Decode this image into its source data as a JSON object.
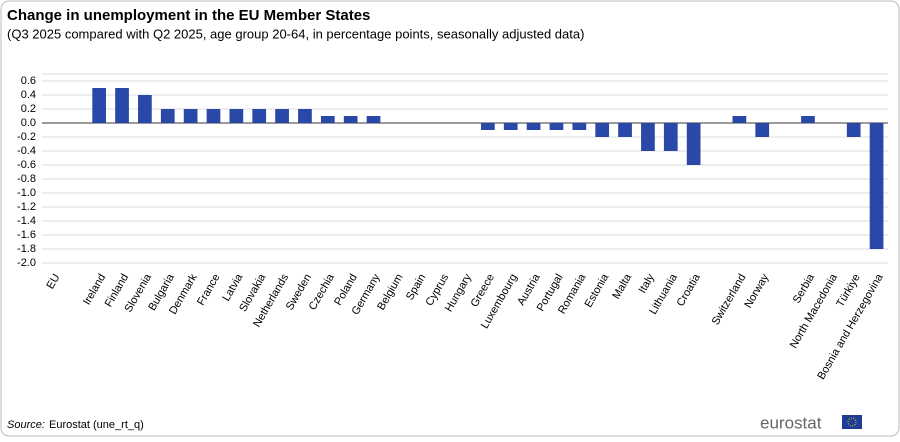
{
  "chart_data": {
    "type": "bar",
    "title": "Change in unemployment in the EU Member States",
    "subtitle": "(Q3 2025 compared with Q2 2025, age group 20-64, in percentage points, seasonally adjusted data)",
    "categories": [
      "EU",
      null,
      "Ireland",
      "Finland",
      "Slovenia",
      "Bulgaria",
      "Denmark",
      "France",
      "Latvia",
      "Slovakia",
      "Netherlands",
      "Sweden",
      "Czechia",
      "Poland",
      "Germany",
      "Belgium",
      "Spain",
      "Cyprus",
      "Hungary",
      "Greece",
      "Luxembourg",
      "Austria",
      "Portugal",
      "Romania",
      "Estonia",
      "Malta",
      "Italy",
      "Lithuania",
      "Croatia",
      null,
      "Switzerland",
      "Norway",
      null,
      "Serbia",
      "North Macedonia",
      "Türkiye",
      "Bosnia and Herzegovina"
    ],
    "values": [
      0,
      null,
      0.5,
      0.5,
      0.4,
      0.2,
      0.2,
      0.2,
      0.2,
      0.2,
      0.2,
      0.2,
      0.1,
      0.1,
      0.1,
      0,
      0,
      0,
      0,
      -0.1,
      -0.1,
      -0.1,
      -0.1,
      -0.1,
      -0.2,
      -0.2,
      -0.4,
      -0.4,
      -0.6,
      null,
      0.1,
      -0.2,
      null,
      0.1,
      0,
      -0.2,
      -1.8
    ],
    "color": "#2a48a8",
    "ylim": [
      -2.0,
      0.7
    ],
    "yticks": [
      0.6,
      0.4,
      0.2,
      {
        "value": 0,
        "label": "0.0"
      },
      -0.2,
      -0.4,
      -0.6,
      -0.8,
      {
        "value": -1,
        "label": "-1.0"
      },
      -1.2,
      -1.4,
      -1.6,
      -1.8,
      {
        "value": -2,
        "label": "-2.0"
      }
    ],
    "grid": true,
    "source_label": "Source:",
    "source": "Eurostat (une_rt_q)",
    "logo": "eurostat"
  }
}
